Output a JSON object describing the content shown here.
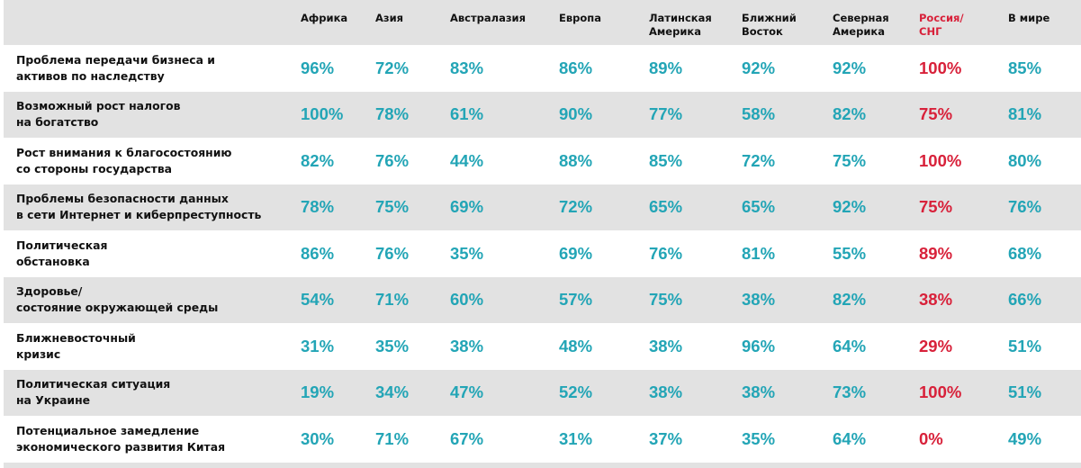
{
  "colors": {
    "region_value": "#23a5b6",
    "russia_value": "#d8213a",
    "stripe": "#e2e2e2",
    "text": "#111111"
  },
  "chart_data": {
    "type": "table",
    "columns": [
      "Африка",
      "Азия",
      "Австралазия",
      "Европа",
      "Латинская\nАмерика",
      "Ближний\nВосток",
      "Северная\nАмерика",
      "Россия/\nСНГ",
      "В мире"
    ],
    "highlight_column": 7,
    "rows": [
      {
        "label": "Проблема передачи бизнеса и\nактивов по наследству",
        "values": [
          "96%",
          "72%",
          "83%",
          "86%",
          "89%",
          "92%",
          "92%",
          "100%",
          "85%"
        ]
      },
      {
        "label": "Возможный рост налогов\nна богатство",
        "values": [
          "100%",
          "78%",
          "61%",
          "90%",
          "77%",
          "58%",
          "82%",
          "75%",
          "81%"
        ]
      },
      {
        "label": "Рост внимания к благосостоянию\nсо стороны государства",
        "values": [
          "82%",
          "76%",
          "44%",
          "88%",
          "85%",
          "72%",
          "75%",
          "100%",
          "80%"
        ]
      },
      {
        "label": "Проблемы безопасности данных\nв сети Интернет и киберпреступность",
        "values": [
          "78%",
          "75%",
          "69%",
          "72%",
          "65%",
          "65%",
          "92%",
          "75%",
          "76%"
        ]
      },
      {
        "label": "Политическая\nобстановка",
        "values": [
          "86%",
          "76%",
          "35%",
          "69%",
          "76%",
          "81%",
          "55%",
          "89%",
          "68%"
        ]
      },
      {
        "label": "Здоровье/\nсостояние окружающей среды",
        "values": [
          "54%",
          "71%",
          "60%",
          "57%",
          "75%",
          "38%",
          "82%",
          "38%",
          "66%"
        ]
      },
      {
        "label": "Ближневосточный\n кризис",
        "values": [
          "31%",
          "35%",
          "38%",
          "48%",
          "38%",
          "96%",
          "64%",
          "29%",
          "51%"
        ]
      },
      {
        "label": "Политическая ситуация\nна Украине",
        "values": [
          "19%",
          "34%",
          "47%",
          "52%",
          "38%",
          "38%",
          "73%",
          "100%",
          "51%"
        ]
      },
      {
        "label": "Потенциальное замедление\nэкономического развития Китая",
        "values": [
          "30%",
          "71%",
          "67%",
          "31%",
          "37%",
          "35%",
          "64%",
          "0%",
          "49%"
        ]
      }
    ]
  }
}
